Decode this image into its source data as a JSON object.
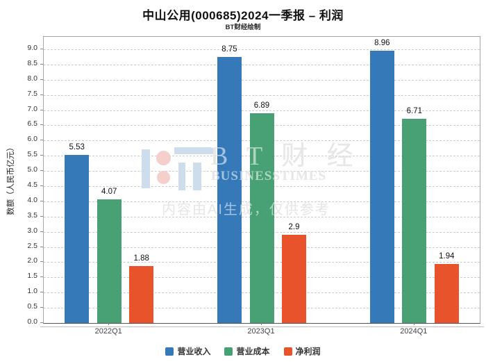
{
  "header": {
    "title": "中山公用(000685)2024一季报 – 利润",
    "subtitle": "BT财经绘制"
  },
  "chart_data": {
    "type": "bar",
    "title": "中山公用(000685)2024一季报 – 利润",
    "subtitle": "BT财经绘制",
    "categories": [
      "2022Q1",
      "2023Q1",
      "2024Q1"
    ],
    "series": [
      {
        "name": "营业收入",
        "color": "#3579b8",
        "values": [
          5.53,
          8.75,
          8.96
        ],
        "labels": [
          "5.53",
          "8.75",
          "8.96"
        ]
      },
      {
        "name": "营业成本",
        "color": "#47a174",
        "values": [
          4.07,
          6.89,
          6.71
        ],
        "labels": [
          "4.07",
          "6.89",
          "6.71"
        ]
      },
      {
        "name": "净利润",
        "color": "#e8532c",
        "values": [
          1.88,
          2.9,
          1.94
        ],
        "labels": [
          "1.88",
          "2.9",
          "1.94"
        ]
      }
    ],
    "xlabel": "",
    "ylabel": "数额（人民币亿元）",
    "ylim": [
      0,
      9.0
    ],
    "ytick_step": 0.5,
    "grid": "dashed-horizontal",
    "legend_position": "bottom"
  },
  "watermark": {
    "brand_cjk": "B T 财 经",
    "brand_en": "BUSINESSTIMES",
    "notice": "内容由AI生成，仅供参考",
    "logo_blue": "#cdddec",
    "logo_pink": "#f5cfcb"
  }
}
